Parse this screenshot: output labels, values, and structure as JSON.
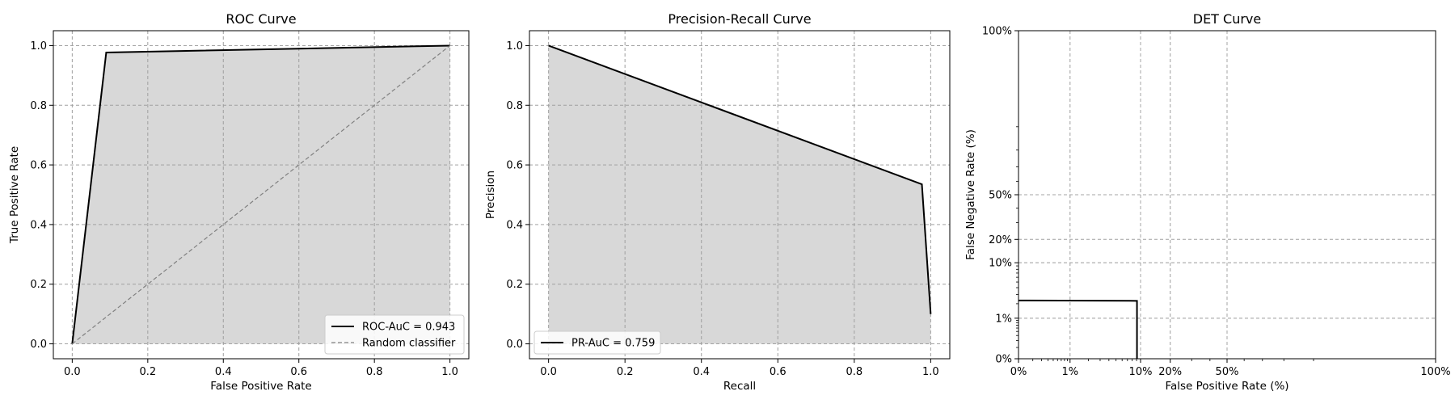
{
  "chart_data": [
    {
      "type": "area",
      "title": "ROC Curve",
      "xlabel": "False Positive Rate",
      "ylabel": "True Positive Rate",
      "xlim": [
        -0.05,
        1.05
      ],
      "ylim": [
        -0.05,
        1.05
      ],
      "xticks": [
        0.0,
        0.2,
        0.4,
        0.6,
        0.8,
        1.0
      ],
      "yticks": [
        0.0,
        0.2,
        0.4,
        0.6,
        0.8,
        1.0
      ],
      "tick_labels_x": [
        "0.0",
        "0.2",
        "0.4",
        "0.6",
        "0.8",
        "1.0"
      ],
      "tick_labels_y": [
        "0.0",
        "0.2",
        "0.4",
        "0.6",
        "0.8",
        "1.0"
      ],
      "grid": true,
      "legend_position": "bottom-right",
      "series": [
        {
          "name": "ROC-AuC = 0.943",
          "style": "solid",
          "fill": true,
          "x": [
            0.0,
            0.09,
            1.0
          ],
          "y": [
            0.0,
            0.977,
            1.0
          ]
        },
        {
          "name": "Random classifier",
          "style": "dashed",
          "fill": false,
          "x": [
            0.0,
            1.0
          ],
          "y": [
            0.0,
            1.0
          ]
        }
      ]
    },
    {
      "type": "area",
      "title": "Precision-Recall Curve",
      "xlabel": "Recall",
      "ylabel": "Precision",
      "xlim": [
        -0.05,
        1.05
      ],
      "ylim": [
        -0.05,
        1.05
      ],
      "xticks": [
        0.0,
        0.2,
        0.4,
        0.6,
        0.8,
        1.0
      ],
      "yticks": [
        0.0,
        0.2,
        0.4,
        0.6,
        0.8,
        1.0
      ],
      "tick_labels_x": [
        "0.0",
        "0.2",
        "0.4",
        "0.6",
        "0.8",
        "1.0"
      ],
      "tick_labels_y": [
        "0.0",
        "0.2",
        "0.4",
        "0.6",
        "0.8",
        "1.0"
      ],
      "grid": true,
      "legend_position": "bottom-left",
      "series": [
        {
          "name": "PR-AuC = 0.759",
          "style": "solid",
          "fill": true,
          "x": [
            0.0,
            0.977,
            1.0
          ],
          "y": [
            1.0,
            0.535,
            0.1
          ]
        }
      ]
    },
    {
      "type": "line",
      "title": "DET Curve",
      "xlabel": "False Positive Rate (%)",
      "ylabel": "False Negative Rate (%)",
      "scale": "probit",
      "xlim": [
        0.001,
        0.999
      ],
      "ylim": [
        0.001,
        0.999
      ],
      "xticks": [
        0.001,
        0.01,
        0.1,
        0.2,
        0.5,
        0.999
      ],
      "yticks": [
        0.001,
        0.01,
        0.1,
        0.2,
        0.5,
        0.999
      ],
      "tick_labels_x": [
        "0%",
        "1%",
        "10%",
        "20%",
        "50%",
        "100%"
      ],
      "tick_labels_y": [
        "0%",
        "1%",
        "10%",
        "20%",
        "50%",
        "100%"
      ],
      "grid": true,
      "series": [
        {
          "style": "solid",
          "fill": false,
          "x": [
            0.001,
            0.091,
            0.091
          ],
          "y": [
            0.0232,
            0.0228,
            0.001
          ]
        }
      ]
    }
  ]
}
